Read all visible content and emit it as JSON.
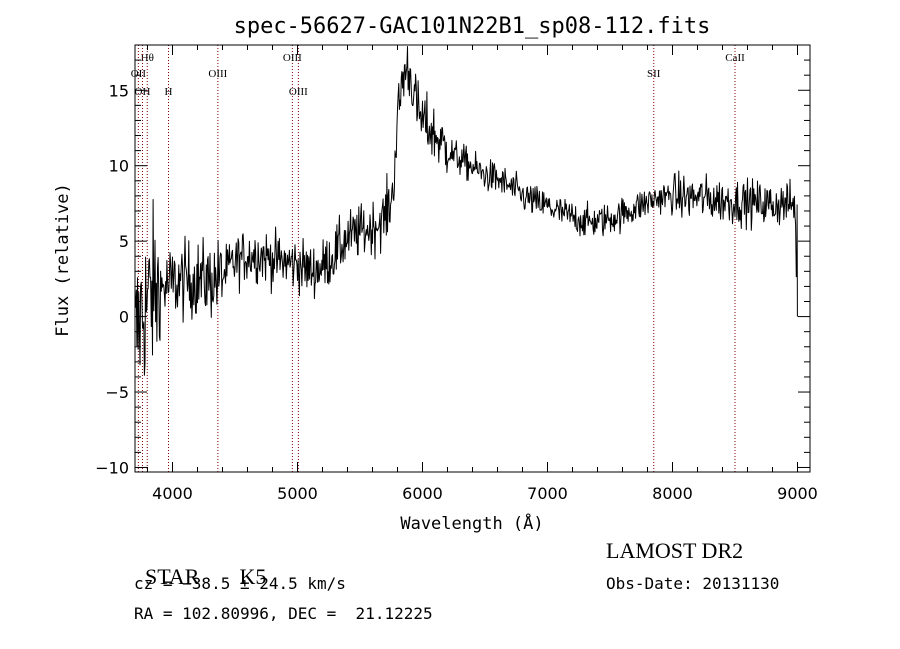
{
  "chart_data": {
    "type": "line",
    "title": "spec-56627-GAC101N22B1_sp08-112.fits",
    "xlabel": "Wavelength (Å)",
    "ylabel": "Flux (relative)",
    "xlim": [
      3700,
      9100
    ],
    "ylim": [
      -10.3,
      18
    ],
    "x_ticks": [
      4000,
      5000,
      6000,
      7000,
      8000,
      9000
    ],
    "y_ticks": [
      -10,
      -5,
      0,
      5,
      10,
      15
    ],
    "grid": false,
    "line_color": "#000000",
    "marker_color": "#8b0000",
    "lines": [
      {
        "label": "Hθ",
        "x": 3798,
        "row": 1
      },
      {
        "label": "OII",
        "x": 3727,
        "row": 2
      },
      {
        "label": "OH",
        "x": 3760,
        "row": 3
      },
      {
        "label": "H",
        "x": 3968,
        "row": 3
      },
      {
        "label": "OIII",
        "x": 4363,
        "row": 2
      },
      {
        "label": "OIII",
        "x": 4959,
        "row": 1
      },
      {
        "label": "OIII",
        "x": 5007,
        "row": 3
      },
      {
        "label": "SII",
        "x": 7850,
        "row": 2
      },
      {
        "label": "CaII",
        "x": 8500,
        "row": 1
      }
    ],
    "spectrum": [
      [
        3700,
        -1.5
      ],
      [
        3750,
        0.2
      ],
      [
        3800,
        1.0
      ],
      [
        3850,
        1.5
      ],
      [
        3900,
        1.8
      ],
      [
        3950,
        2.0
      ],
      [
        4000,
        2.2
      ],
      [
        4100,
        2.4
      ],
      [
        4200,
        2.5
      ],
      [
        4300,
        2.4
      ],
      [
        4400,
        2.7
      ],
      [
        4500,
        3.6
      ],
      [
        4600,
        4.1
      ],
      [
        4700,
        4.1
      ],
      [
        4800,
        3.8
      ],
      [
        4900,
        3.6
      ],
      [
        5000,
        3.5
      ],
      [
        5100,
        3.0
      ],
      [
        5200,
        3.3
      ],
      [
        5300,
        4.2
      ],
      [
        5400,
        5.2
      ],
      [
        5500,
        5.6
      ],
      [
        5600,
        5.9
      ],
      [
        5700,
        6.6
      ],
      [
        5760,
        8.0
      ],
      [
        5800,
        13.0
      ],
      [
        5840,
        15.8
      ],
      [
        5880,
        16.6
      ],
      [
        5920,
        15.4
      ],
      [
        5960,
        13.6
      ],
      [
        6000,
        13.0
      ],
      [
        6100,
        12.0
      ],
      [
        6200,
        11.0
      ],
      [
        6300,
        10.4
      ],
      [
        6400,
        9.9
      ],
      [
        6500,
        9.4
      ],
      [
        6600,
        9.1
      ],
      [
        6700,
        8.6
      ],
      [
        6800,
        8.0
      ],
      [
        6900,
        7.6
      ],
      [
        7000,
        7.3
      ],
      [
        7100,
        6.9
      ],
      [
        7200,
        6.6
      ],
      [
        7300,
        6.3
      ],
      [
        7400,
        6.3
      ],
      [
        7500,
        6.5
      ],
      [
        7600,
        6.8
      ],
      [
        7700,
        7.2
      ],
      [
        7800,
        7.6
      ],
      [
        7900,
        7.9
      ],
      [
        8000,
        8.0
      ],
      [
        8100,
        7.9
      ],
      [
        8200,
        7.9
      ],
      [
        8300,
        7.8
      ],
      [
        8400,
        7.7
      ],
      [
        8500,
        7.6
      ],
      [
        8600,
        7.6
      ],
      [
        8700,
        7.5
      ],
      [
        8800,
        7.4
      ],
      [
        8900,
        7.5
      ],
      [
        8980,
        7.4
      ],
      [
        9000,
        0.0
      ]
    ]
  },
  "info": {
    "class_label": "STAR",
    "subclass": "K5",
    "survey": "LAMOST DR2",
    "cz": "cz = −38.5 ± 24.5 km/s",
    "obs_date": "Obs-Date: 20131130",
    "coords": "RA = 102.80996, DEC =  21.12225"
  }
}
